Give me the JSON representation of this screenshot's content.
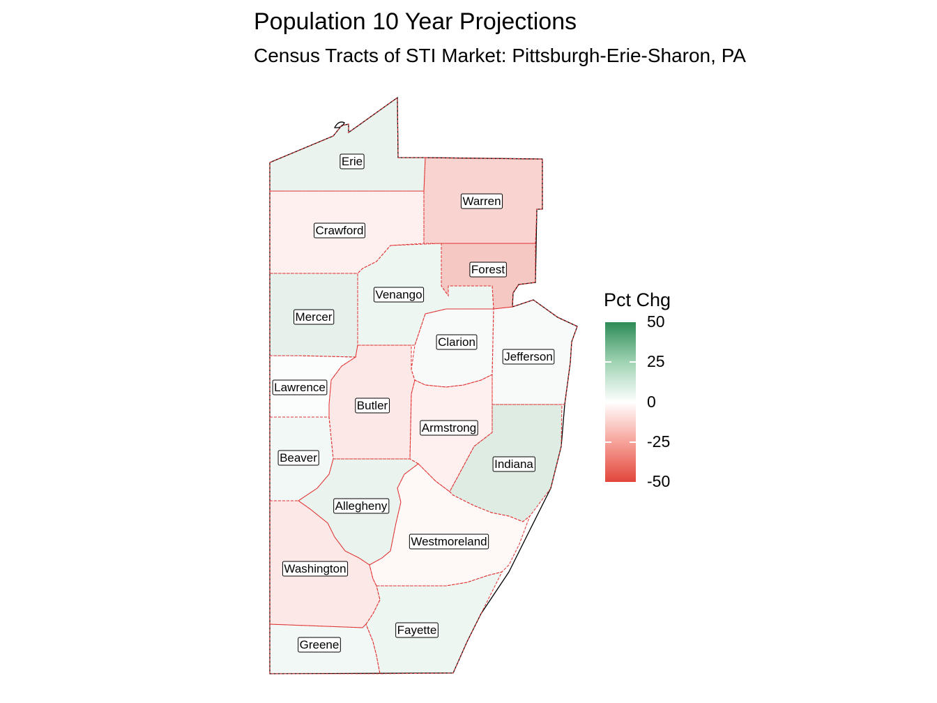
{
  "title": "Population 10 Year Projections",
  "subtitle": "Census Tracts of STI Market: Pittsburgh-Erie-Sharon, PA",
  "legend": {
    "title": "Pct Chg",
    "ticks": [
      "50",
      "25",
      "0",
      "-25",
      "-50"
    ],
    "colors": {
      "high": "#2e8b57",
      "mid": "#ffffff",
      "low": "#e2463b"
    }
  },
  "counties": [
    {
      "name": "Erie",
      "pct_chg": 5
    },
    {
      "name": "Warren",
      "pct_chg": -12
    },
    {
      "name": "Crawford",
      "pct_chg": -4
    },
    {
      "name": "Forest",
      "pct_chg": -15
    },
    {
      "name": "Venango",
      "pct_chg": 4
    },
    {
      "name": "Mercer",
      "pct_chg": 6
    },
    {
      "name": "Clarion",
      "pct_chg": 2
    },
    {
      "name": "Jefferson",
      "pct_chg": 2
    },
    {
      "name": "Lawrence",
      "pct_chg": 1
    },
    {
      "name": "Butler",
      "pct_chg": -6
    },
    {
      "name": "Armstrong",
      "pct_chg": -4
    },
    {
      "name": "Beaver",
      "pct_chg": 3
    },
    {
      "name": "Indiana",
      "pct_chg": 8
    },
    {
      "name": "Allegheny",
      "pct_chg": 5
    },
    {
      "name": "Westmoreland",
      "pct_chg": -2
    },
    {
      "name": "Washington",
      "pct_chg": -6
    },
    {
      "name": "Fayette",
      "pct_chg": 4
    },
    {
      "name": "Greene",
      "pct_chg": 3
    }
  ]
}
